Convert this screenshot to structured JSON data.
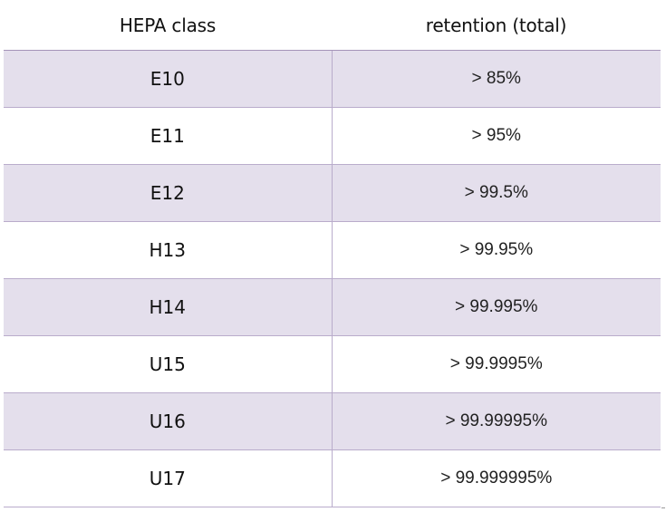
{
  "table": {
    "headers": [
      "HEPA class",
      "retention (total)"
    ],
    "rows": [
      {
        "class": "E10",
        "retention": "> 85%"
      },
      {
        "class": "E11",
        "retention": "> 95%"
      },
      {
        "class": "E12",
        "retention": "> 99.5%"
      },
      {
        "class": "H13",
        "retention": "> 99.95%"
      },
      {
        "class": "H14",
        "retention": "> 99.995%"
      },
      {
        "class": "U15",
        "retention": "> 99.9995%"
      },
      {
        "class": "U16",
        "retention": "> 99.99995%"
      },
      {
        "class": "U17",
        "retention": "> 99.999995%"
      }
    ],
    "shaded_row_color": "#e4dfec",
    "border_color": "#b9accb"
  }
}
